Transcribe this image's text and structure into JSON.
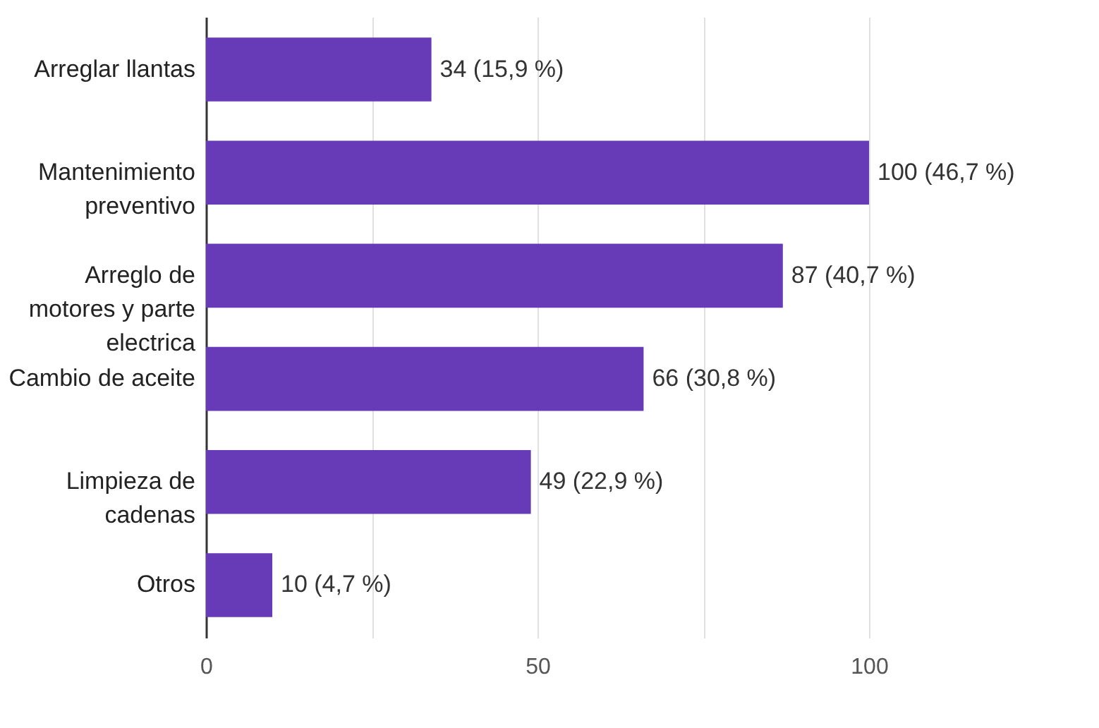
{
  "chart_data": {
    "type": "bar",
    "orientation": "horizontal",
    "categories": [
      "Arreglar llantas",
      "Mantenimiento preventivo",
      "Arreglo de motores y parte electrica",
      "Cambio de aceite",
      "Limpieza de cadenas",
      "Otros"
    ],
    "values": [
      34,
      100,
      87,
      66,
      49,
      10
    ],
    "value_labels": [
      "34 (15,9 %)",
      "100 (46,7 %)",
      "87 (40,7 %)",
      "66 (30,8 %)",
      "49 (22,9 %)",
      "10 (4,7 %)"
    ],
    "color": "#673ab7",
    "xlim": [
      0,
      100
    ],
    "xticks": [
      0,
      {
        "value": 25,
        "label": null
      },
      50,
      {
        "value": 75,
        "label": null
      },
      100
    ],
    "grid": "x"
  }
}
